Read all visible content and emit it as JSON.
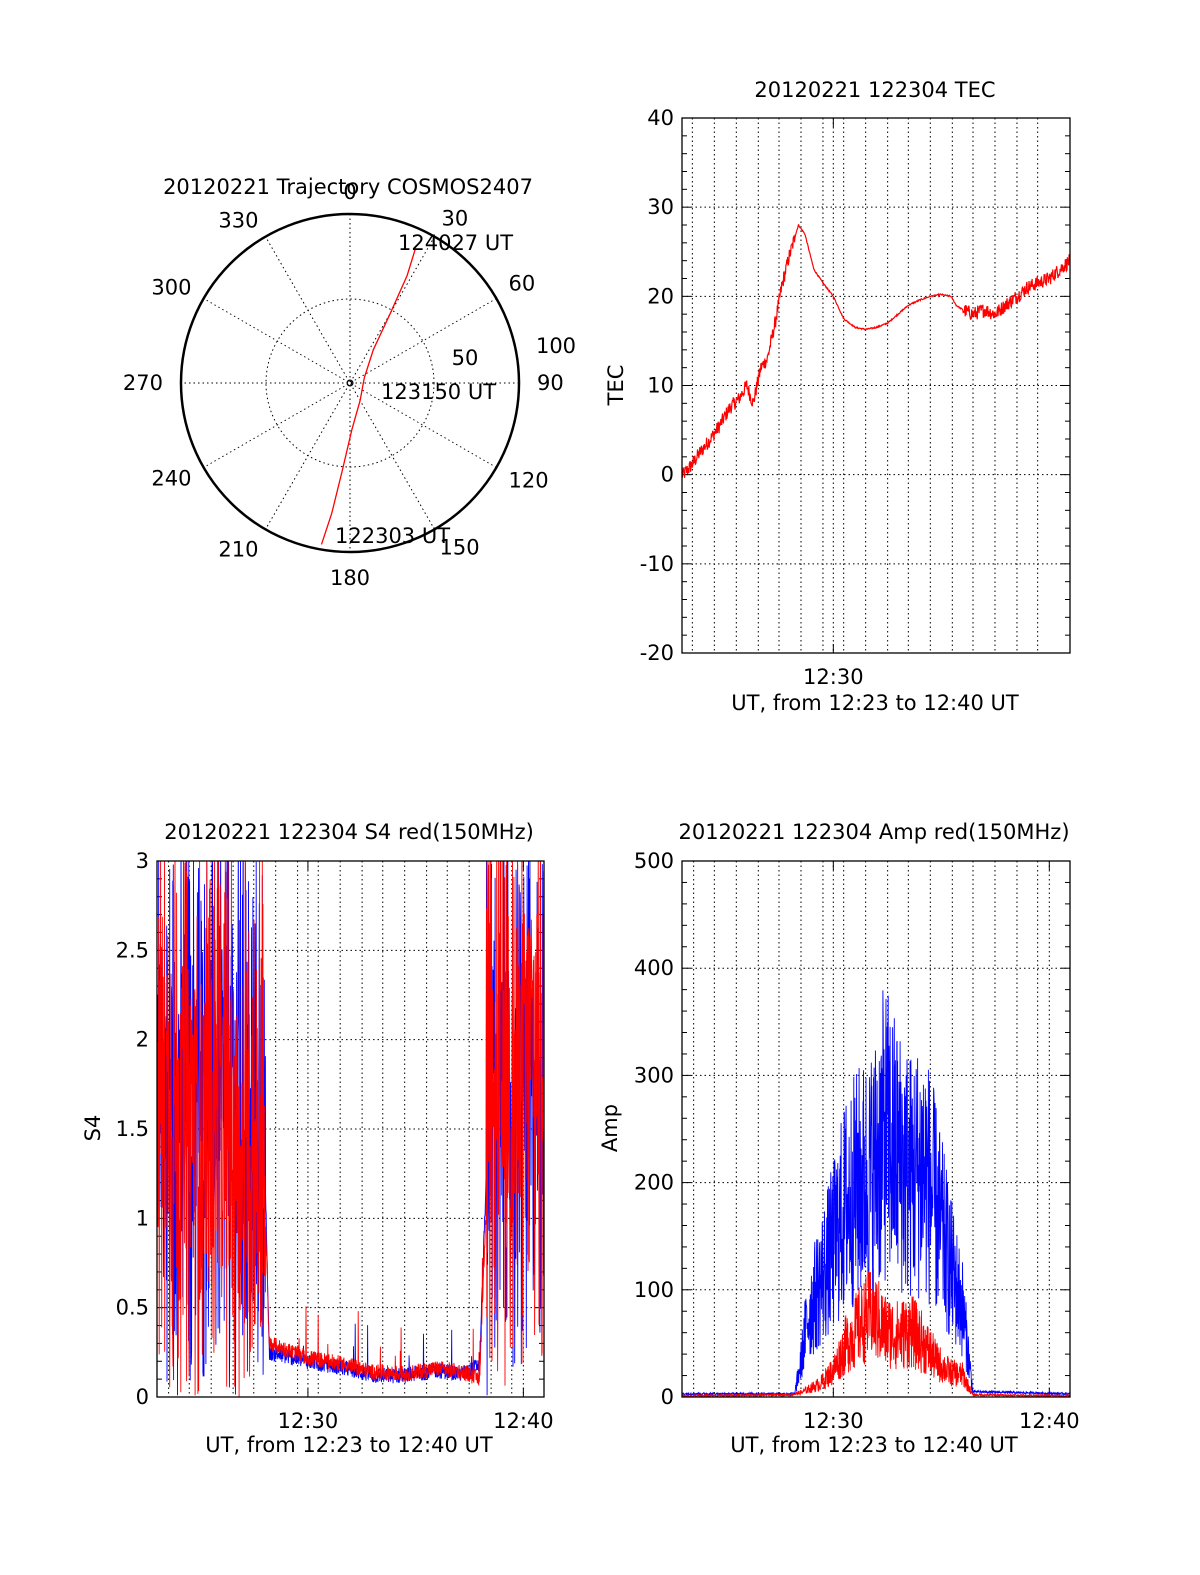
{
  "chart_data": [
    {
      "id": "trajectory",
      "type": "polar",
      "title": "20120221 Trajectory COSMOS2407",
      "angle_labels": [
        "0",
        "30",
        "60",
        "90",
        "120",
        "150",
        "180",
        "210",
        "240",
        "270",
        "300",
        "330"
      ],
      "elevation_labels": [
        "50",
        "100"
      ],
      "start_label": "122303 UT",
      "mid_label": "123150 UT",
      "end_label": "124027 UT",
      "track": {
        "color": "#ff0000",
        "points": [
          {
            "az": 190,
            "r": 97
          },
          {
            "az": 188,
            "r": 78
          },
          {
            "az": 185,
            "r": 52
          },
          {
            "az": 178,
            "r": 28
          },
          {
            "az": 150,
            "r": 12
          },
          {
            "az": 70,
            "r": 9
          },
          {
            "az": 35,
            "r": 24
          },
          {
            "az": 30,
            "r": 48
          },
          {
            "az": 28,
            "r": 72
          },
          {
            "az": 26,
            "r": 88
          }
        ]
      }
    },
    {
      "id": "tec",
      "type": "line",
      "title": "20120221 122304 TEC",
      "xlabel": "UT, from 12:23 to 12:40 UT",
      "ylabel": "TEC",
      "xlim": [
        12.383,
        12.683
      ],
      "ylim": [
        -20,
        40
      ],
      "xticks": [
        {
          "v": 12.5,
          "label": "12:30"
        }
      ],
      "yticks": [
        "-20",
        "-10",
        "0",
        "10",
        "20",
        "30",
        "40"
      ],
      "grid_x": [
        12.391,
        12.408,
        12.425,
        12.442,
        12.458,
        12.475,
        12.492,
        12.5,
        12.508,
        12.525,
        12.542,
        12.558,
        12.575,
        12.592,
        12.608,
        12.625,
        12.642,
        12.658
      ],
      "grid_y": [
        -10,
        0,
        10,
        20,
        30
      ],
      "series": [
        {
          "color": "#ff0000",
          "x": [
            12.384,
            12.39,
            12.397,
            12.405,
            12.412,
            12.42,
            12.427,
            12.433,
            12.438,
            12.444,
            12.449,
            12.455,
            12.46,
            12.465,
            12.469,
            12.473,
            12.478,
            12.485,
            12.492,
            12.5,
            12.508,
            12.517,
            12.525,
            12.533,
            12.542,
            12.55,
            12.558,
            12.567,
            12.575,
            12.583,
            12.591,
            12.595,
            12.6,
            12.608,
            12.617,
            12.625,
            12.633,
            12.642,
            12.65,
            12.658,
            12.667,
            12.675,
            12.683
          ],
          "y": [
            0,
            1,
            2.5,
            4,
            5.5,
            7.5,
            8.5,
            10,
            8,
            12,
            13,
            17,
            21,
            24,
            26,
            28,
            27,
            23,
            21.5,
            20,
            17.5,
            16.5,
            16.3,
            16.5,
            17,
            18,
            19,
            19.6,
            20,
            20.2,
            20,
            19,
            18.5,
            18,
            18.5,
            18,
            19,
            20,
            21,
            21.5,
            22,
            23,
            24
          ]
        }
      ]
    },
    {
      "id": "s4",
      "type": "line",
      "title": "20120221 122304 S4 red(150MHz)",
      "xlabel": "UT, from 12:23 to 12:40 UT",
      "ylabel": "S4",
      "xlim": [
        12.383,
        12.683
      ],
      "ylim": [
        0,
        3
      ],
      "xticks": [
        {
          "v": 12.5,
          "label": "12:30"
        },
        {
          "v": 12.667,
          "label": "12:40"
        }
      ],
      "yticks": [
        "0",
        "0.5",
        "1",
        "1.5",
        "2",
        "2.5",
        "3"
      ],
      "grid_x": [
        12.392,
        12.408,
        12.425,
        12.442,
        12.458,
        12.475,
        12.492,
        12.5,
        12.508,
        12.525,
        12.542,
        12.558,
        12.575,
        12.592,
        12.608,
        12.625,
        12.642,
        12.658,
        12.667
      ],
      "grid_y": [
        0.5,
        1,
        1.5,
        2,
        2.5
      ],
      "series": [
        {
          "color": "#0000ff",
          "x": [
            12.38,
            12.44,
            12.467,
            12.47,
            12.5,
            12.53,
            12.55,
            12.575,
            12.6,
            12.62,
            12.633,
            12.64,
            12.68
          ],
          "y": [
            1.8,
            1.7,
            1.2,
            0.25,
            0.2,
            0.16,
            0.12,
            0.12,
            0.15,
            0.13,
            0.18,
            1.6,
            1.7
          ]
        },
        {
          "color": "#ff0000",
          "x": [
            12.38,
            12.44,
            12.467,
            12.47,
            12.5,
            12.53,
            12.55,
            12.575,
            12.6,
            12.62,
            12.633,
            12.64,
            12.68
          ],
          "y": [
            1.7,
            1.5,
            1.0,
            0.3,
            0.22,
            0.18,
            0.14,
            0.13,
            0.16,
            0.14,
            0.1,
            1.4,
            2.2
          ]
        }
      ]
    },
    {
      "id": "amp",
      "type": "line",
      "title": "20120221 122304 Amp red(150MHz)",
      "xlabel": "UT, from 12:23 to 12:40 UT",
      "ylabel": "Amp",
      "xlim": [
        12.383,
        12.683
      ],
      "ylim": [
        0,
        500
      ],
      "xticks": [
        {
          "v": 12.5,
          "label": "12:30"
        },
        {
          "v": 12.667,
          "label": "12:40"
        }
      ],
      "yticks": [
        "0",
        "100",
        "200",
        "300",
        "400",
        "500"
      ],
      "grid_x": [
        12.392,
        12.408,
        12.425,
        12.442,
        12.458,
        12.475,
        12.492,
        12.5,
        12.508,
        12.525,
        12.542,
        12.558,
        12.575,
        12.592,
        12.608,
        12.625,
        12.642,
        12.658,
        12.667
      ],
      "grid_y": [
        100,
        200,
        300,
        400
      ],
      "series": [
        {
          "color": "#0000ff",
          "x": [
            12.383,
            12.47,
            12.475,
            12.48,
            12.49,
            12.5,
            12.51,
            12.52,
            12.53,
            12.54,
            12.55,
            12.56,
            12.57,
            12.58,
            12.59,
            12.6,
            12.608,
            12.683
          ],
          "y": [
            3,
            3,
            40,
            90,
            130,
            170,
            220,
            240,
            250,
            300,
            270,
            250,
            260,
            210,
            150,
            100,
            5,
            3
          ]
        },
        {
          "color": "#ff0000",
          "x": [
            12.383,
            12.465,
            12.475,
            12.49,
            12.5,
            12.51,
            12.52,
            12.53,
            12.54,
            12.55,
            12.56,
            12.57,
            12.58,
            12.59,
            12.6,
            12.608,
            12.683
          ],
          "y": [
            1,
            2,
            5,
            15,
            30,
            60,
            80,
            95,
            75,
            70,
            75,
            60,
            40,
            28,
            25,
            2,
            1
          ]
        }
      ]
    }
  ]
}
